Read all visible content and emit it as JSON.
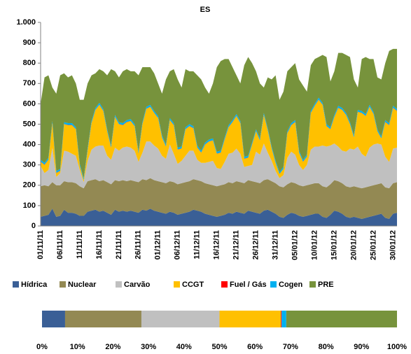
{
  "chart_data": [
    {
      "type": "area",
      "stacked": true,
      "title": "ES",
      "categories": [
        "01/11/11",
        null,
        null,
        null,
        null,
        "06/11/11",
        null,
        null,
        null,
        null,
        "11/11/11",
        null,
        null,
        null,
        null,
        "16/11/11",
        null,
        null,
        null,
        null,
        "21/11/11",
        null,
        null,
        null,
        null,
        "26/11/11",
        null,
        null,
        null,
        null,
        "01/12/11",
        null,
        null,
        null,
        null,
        "06/12/11",
        null,
        null,
        null,
        null,
        "11/12/11",
        null,
        null,
        null,
        null,
        "16/12/11",
        null,
        null,
        null,
        null,
        "21/12/11",
        null,
        null,
        null,
        null,
        "26/12/11",
        null,
        null,
        null,
        null,
        "31/12/11",
        null,
        null,
        null,
        null,
        "05/01/12",
        null,
        null,
        null,
        null,
        "10/01/12",
        null,
        null,
        null,
        null,
        "15/01/12",
        null,
        null,
        null,
        null,
        "20/01/12",
        null,
        null,
        null,
        null,
        "25/01/12",
        null,
        null,
        null,
        null,
        "30/01/12",
        null
      ],
      "series": [
        {
          "name": "Hídrica",
          "color": "#3a5f96",
          "values": [
            45,
            50,
            55,
            85,
            45,
            50,
            80,
            65,
            65,
            60,
            50,
            50,
            70,
            75,
            80,
            70,
            75,
            65,
            55,
            80,
            70,
            75,
            70,
            75,
            70,
            65,
            80,
            75,
            85,
            75,
            70,
            65,
            60,
            70,
            65,
            55,
            60,
            65,
            70,
            80,
            75,
            70,
            60,
            55,
            50,
            45,
            50,
            55,
            65,
            60,
            70,
            65,
            60,
            75,
            70,
            65,
            60,
            75,
            80,
            70,
            60,
            45,
            40,
            55,
            65,
            60,
            50,
            45,
            50,
            55,
            60,
            60,
            45,
            40,
            55,
            75,
            70,
            60,
            45,
            40,
            45,
            40,
            35,
            40,
            45,
            50,
            55,
            60,
            40,
            35,
            60,
            65
          ]
        },
        {
          "name": "Nuclear",
          "color": "#938953",
          "values": [
            150,
            150,
            140,
            130,
            155,
            150,
            140,
            150,
            150,
            150,
            145,
            135,
            150,
            150,
            150,
            150,
            150,
            150,
            150,
            145,
            150,
            150,
            150,
            150,
            150,
            150,
            150,
            150,
            150,
            150,
            150,
            150,
            150,
            150,
            150,
            150,
            150,
            150,
            150,
            150,
            150,
            150,
            150,
            150,
            150,
            150,
            150,
            150,
            150,
            150,
            150,
            150,
            150,
            150,
            150,
            150,
            150,
            150,
            150,
            150,
            150,
            150,
            150,
            150,
            150,
            150,
            150,
            150,
            150,
            150,
            150,
            150,
            150,
            150,
            150,
            150,
            150,
            150,
            150,
            150,
            150,
            150,
            150,
            150,
            150,
            150,
            150,
            150,
            150,
            150,
            150,
            150
          ]
        },
        {
          "name": "Carvão",
          "color": "#c0c0c0",
          "values": [
            100,
            60,
            80,
            170,
            40,
            60,
            150,
            150,
            140,
            135,
            80,
            30,
            100,
            150,
            160,
            175,
            170,
            130,
            120,
            160,
            150,
            160,
            170,
            160,
            150,
            100,
            130,
            190,
            180,
            170,
            160,
            130,
            120,
            180,
            140,
            100,
            110,
            130,
            150,
            140,
            100,
            90,
            100,
            110,
            120,
            90,
            80,
            110,
            140,
            150,
            160,
            140,
            80,
            70,
            80,
            150,
            140,
            180,
            130,
            100,
            60,
            40,
            60,
            130,
            150,
            140,
            100,
            80,
            100,
            170,
            180,
            180,
            200,
            200,
            190,
            180,
            170,
            160,
            170,
            190,
            180,
            200,
            170,
            150,
            190,
            200,
            200,
            190,
            150,
            130,
            170,
            170
          ]
        },
        {
          "name": "CCGT",
          "color": "#ffc000",
          "values": [
            20,
            40,
            50,
            120,
            20,
            10,
            130,
            130,
            140,
            130,
            20,
            10,
            50,
            130,
            180,
            200,
            170,
            120,
            60,
            150,
            130,
            110,
            120,
            130,
            120,
            40,
            140,
            160,
            170,
            160,
            150,
            90,
            60,
            120,
            140,
            70,
            60,
            130,
            120,
            110,
            60,
            50,
            90,
            100,
            100,
            70,
            80,
            110,
            130,
            150,
            160,
            150,
            40,
            40,
            100,
            100,
            70,
            140,
            110,
            60,
            40,
            20,
            30,
            120,
            130,
            160,
            60,
            40,
            40,
            180,
            200,
            230,
            200,
            100,
            80,
            130,
            190,
            200,
            180,
            120,
            60,
            170,
            200,
            200,
            200,
            150,
            60,
            30,
            170,
            180,
            200,
            180
          ]
        },
        {
          "name": "Fuel / Gás",
          "color": "#ff0000",
          "values": [
            1,
            1,
            1,
            1,
            1,
            1,
            1,
            1,
            1,
            1,
            1,
            1,
            1,
            1,
            1,
            1,
            1,
            1,
            1,
            1,
            1,
            1,
            1,
            1,
            1,
            1,
            1,
            1,
            1,
            1,
            1,
            1,
            1,
            1,
            1,
            1,
            1,
            1,
            1,
            1,
            1,
            1,
            1,
            1,
            1,
            1,
            1,
            1,
            1,
            1,
            1,
            1,
            1,
            1,
            1,
            1,
            1,
            1,
            1,
            1,
            1,
            1,
            1,
            1,
            1,
            1,
            1,
            1,
            1,
            1,
            1,
            1,
            1,
            1,
            1,
            1,
            1,
            1,
            1,
            1,
            1,
            1,
            1,
            1,
            1,
            1,
            1,
            1,
            1,
            1,
            1,
            1
          ]
        },
        {
          "name": "Cogen",
          "color": "#00b0f0",
          "values": [
            9,
            9,
            9,
            9,
            9,
            9,
            9,
            9,
            9,
            9,
            9,
            9,
            9,
            9,
            9,
            9,
            9,
            9,
            9,
            9,
            9,
            9,
            9,
            9,
            9,
            9,
            9,
            9,
            9,
            9,
            9,
            9,
            9,
            9,
            9,
            9,
            9,
            9,
            9,
            9,
            9,
            9,
            9,
            9,
            9,
            9,
            9,
            9,
            9,
            9,
            9,
            9,
            9,
            9,
            9,
            9,
            9,
            9,
            9,
            9,
            9,
            9,
            9,
            9,
            9,
            9,
            9,
            9,
            9,
            9,
            9,
            9,
            9,
            9,
            9,
            9,
            9,
            9,
            9,
            9,
            9,
            9,
            9,
            9,
            9,
            9,
            9,
            9,
            9,
            9,
            9,
            9
          ]
        },
        {
          "name": "PRE",
          "color": "#77933c",
          "values": [
            275,
            420,
            405,
            165,
            380,
            460,
            240,
            225,
            235,
            215,
            315,
            385,
            320,
            225,
            170,
            165,
            185,
            265,
            375,
            215,
            220,
            255,
            250,
            235,
            260,
            375,
            270,
            195,
            185,
            185,
            160,
            205,
            320,
            230,
            265,
            335,
            290,
            285,
            260,
            270,
            345,
            350,
            270,
            225,
            270,
            415,
            440,
            385,
            325,
            260,
            190,
            185,
            450,
            485,
            390,
            285,
            270,
            125,
            250,
            330,
            420,
            355,
            370,
            295,
            275,
            280,
            350,
            365,
            310,
            225,
            220,
            200,
            235,
            330,
            225,
            215,
            260,
            270,
            285,
            320,
            275,
            110,
            255,
            280,
            225,
            260,
            255,
            280,
            280,
            355,
            280,
            295
          ]
        }
      ],
      "ylim": [
        0,
        1000
      ],
      "yticks": [
        0,
        100,
        200,
        300,
        400,
        500,
        600,
        700,
        800,
        900,
        {
          "value": 1000,
          "label": "1.000"
        }
      ],
      "grid": false,
      "legend": "bottom"
    },
    {
      "type": "bar",
      "orientation": "horizontal",
      "stacked": true,
      "series": [
        {
          "color": "#3a5f96",
          "values": [
            6.5
          ]
        },
        {
          "color": "#938953",
          "values": [
            21.5
          ]
        },
        {
          "color": "#c0c0c0",
          "values": [
            22
          ]
        },
        {
          "color": "#ffc000",
          "values": [
            17.3
          ]
        },
        {
          "color": "#ff0000",
          "values": [
            0.2
          ]
        },
        {
          "color": "#00b0f0",
          "values": [
            1.3
          ]
        },
        {
          "color": "#77933c",
          "values": [
            31.2
          ]
        }
      ],
      "xlim": [
        0,
        100
      ],
      "xticks": [
        {
          "value": 0,
          "label": "0%"
        },
        {
          "value": 10,
          "label": "10%"
        },
        {
          "value": 20,
          "label": "20%"
        },
        {
          "value": 30,
          "label": "30%"
        },
        {
          "value": 40,
          "label": "40%"
        },
        {
          "value": 50,
          "label": "50%"
        },
        {
          "value": 60,
          "label": "60%"
        },
        {
          "value": 70,
          "label": "70%"
        },
        {
          "value": 80,
          "label": "80%"
        },
        {
          "value": 90,
          "label": "90%"
        },
        {
          "value": 100,
          "label": "100%"
        }
      ]
    }
  ]
}
